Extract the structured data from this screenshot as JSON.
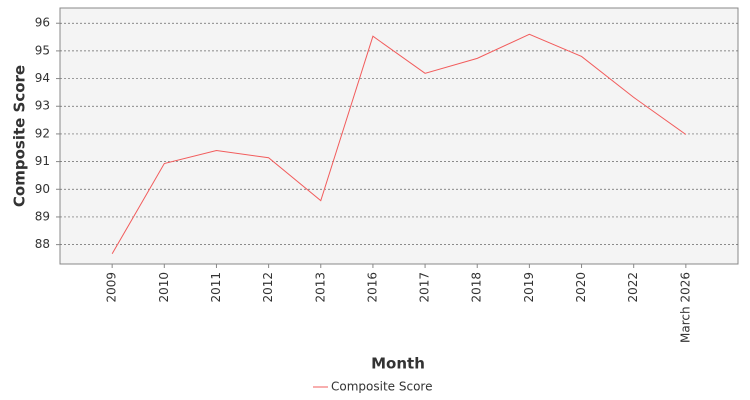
{
  "chart_data": {
    "type": "line",
    "x_label": "Month",
    "y_label": "Composite Score",
    "categories": [
      "2009",
      "2010",
      "2011",
      "2012",
      "2013",
      "2016",
      "2017",
      "2018",
      "2019",
      "2020",
      "2022",
      "March 2026"
    ],
    "series": [
      {
        "name": "Composite Score",
        "color": "#f25c5c",
        "values": [
          87.67,
          90.93,
          91.4,
          91.14,
          89.59,
          95.53,
          94.19,
          94.73,
          95.6,
          94.8,
          93.32,
          91.98
        ]
      }
    ],
    "ylim": [
      87.3,
      96.55
    ],
    "yticks": [
      88,
      89,
      90,
      91,
      92,
      93,
      94,
      95,
      96
    ],
    "grid": true
  }
}
